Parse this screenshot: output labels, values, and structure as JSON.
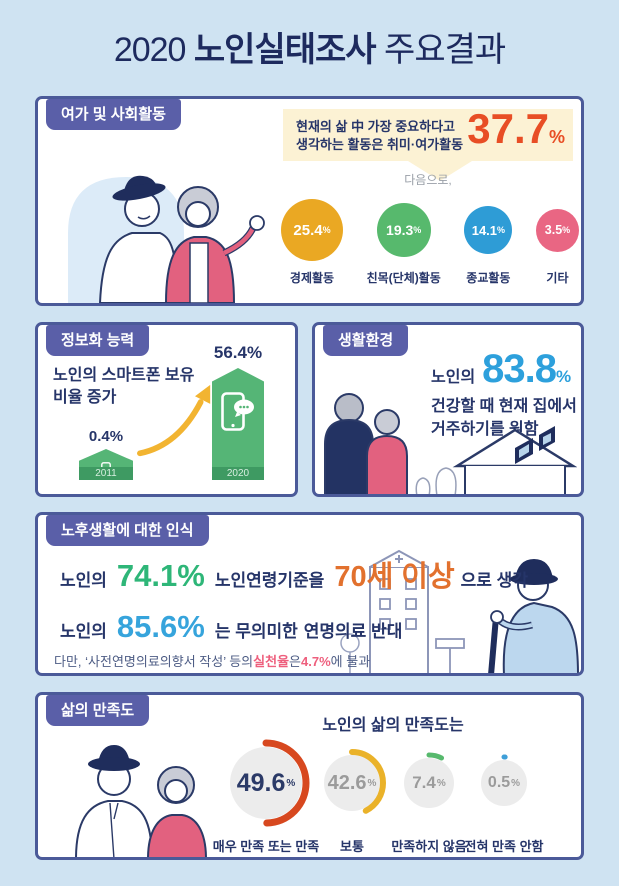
{
  "page": {
    "title_prefix": "2020",
    "title_bold": "노인실태조사",
    "title_suffix": "주요결과",
    "pct": "%"
  },
  "palette": {
    "background": "#cfe3f2",
    "card_border": "#4b5a99",
    "badge_purple": "#5a5fa8",
    "navy_text": "#263569",
    "callout_bg": "#fcf2d4",
    "accent_orange_red": "#e84e25",
    "bar_green": "#55b576",
    "bar_green_dark": "#3e9a62",
    "arrow_yellow": "#f2b431",
    "value_blue": "#2da0dc",
    "value_green": "#2eb678",
    "value_orange": "#e2712e",
    "value_cyan": "#36a4dc",
    "highlight_pink": "#ee5f7d",
    "donut_gray": "#ececec"
  },
  "sections": {
    "leisure": {
      "badge": "여가 및 사회활동",
      "callout_line1": "현재의 삶 中 가장 중요하다고",
      "callout_line2": "생각하는 활동은 취미·여가활동",
      "callout_value": "37.7",
      "next_label": "다음으로,",
      "circles": [
        {
          "value": "25.4",
          "label": "경제활동",
          "color": "#eaa823"
        },
        {
          "value": "19.3",
          "label": "친목(단체)활동",
          "color": "#57b96d"
        },
        {
          "value": "14.1",
          "label": "종교활동",
          "color": "#2e9cd6"
        },
        {
          "value": "3.5",
          "label": "기타",
          "color": "#e96683"
        }
      ]
    },
    "digital": {
      "badge": "정보화 능력",
      "desc_line1": "노인의 스마트폰 보유",
      "desc_line2": "비율 증가",
      "bars": [
        {
          "value": "0.4%",
          "year": "2011"
        },
        {
          "value": "56.4%",
          "year": "2020"
        }
      ]
    },
    "living": {
      "badge": "생활환경",
      "prefix": "노인의",
      "value": "83.8",
      "line2": "건강할 때 현재 집에서",
      "line3": "거주하기를 원함"
    },
    "perception": {
      "badge": "노후생활에 대한 인식",
      "row1": {
        "prefix": "노인의",
        "value": "74.1%",
        "mid": "노인연령기준을",
        "highlight": "70세 이상",
        "suffix": "으로 생각"
      },
      "row2": {
        "prefix": "노인의",
        "value": "85.6%",
        "mid": "는 무의미한",
        "bold": "연명의료 반대"
      },
      "row3": {
        "part1": "다만, ‘사전연명의료의향서 작성’ 등의 ",
        "hl1": "실천율",
        "part2": "은 ",
        "hl2": "4.7%",
        "part3": "에 불과"
      }
    },
    "satisfaction": {
      "badge": "삶의 만족도",
      "heading": "노인의 삶의 만족도는",
      "donuts": [
        {
          "value": "49.6",
          "pct": 49.6,
          "label": "매우 만족 또는 만족",
          "color": "#d7481f"
        },
        {
          "value": "42.6",
          "pct": 42.6,
          "label": "보통",
          "color": "#eab229"
        },
        {
          "value": "7.4",
          "pct": 7.4,
          "label": "만족하지 않음",
          "color": "#57b96d"
        },
        {
          "value": "0.5",
          "pct": 0.5,
          "label": "전혀 만족 안함",
          "color": "#3f9fd8"
        }
      ]
    }
  },
  "chart_data": [
    {
      "type": "pie",
      "title": "현재의 삶 中 가장 중요하다고 생각하는 활동",
      "categories": [
        "취미·여가활동",
        "경제활동",
        "친목(단체)활동",
        "종교활동",
        "기타"
      ],
      "values": [
        37.7,
        25.4,
        19.3,
        14.1,
        3.5
      ],
      "unit": "%"
    },
    {
      "type": "bar",
      "title": "노인의 스마트폰 보유 비율 증가",
      "categories": [
        "2011",
        "2020"
      ],
      "values": [
        0.4,
        56.4
      ],
      "unit": "%"
    },
    {
      "type": "bar",
      "title": "생활환경 / 노후생활에 대한 인식 주요 수치",
      "categories": [
        "건강할 때 현재 집 거주 희망",
        "노인연령기준 70세 이상으로 인식",
        "무의미한 연명의료 반대",
        "사전연명의료의향서 작성 등 실천율"
      ],
      "values": [
        83.8,
        74.1,
        85.6,
        4.7
      ],
      "unit": "%"
    },
    {
      "type": "pie",
      "title": "노인의 삶의 만족도",
      "categories": [
        "매우 만족 또는 만족",
        "보통",
        "만족하지 않음",
        "전혀 만족 안함"
      ],
      "values": [
        49.6,
        42.6,
        7.4,
        0.5
      ],
      "unit": "%"
    }
  ]
}
